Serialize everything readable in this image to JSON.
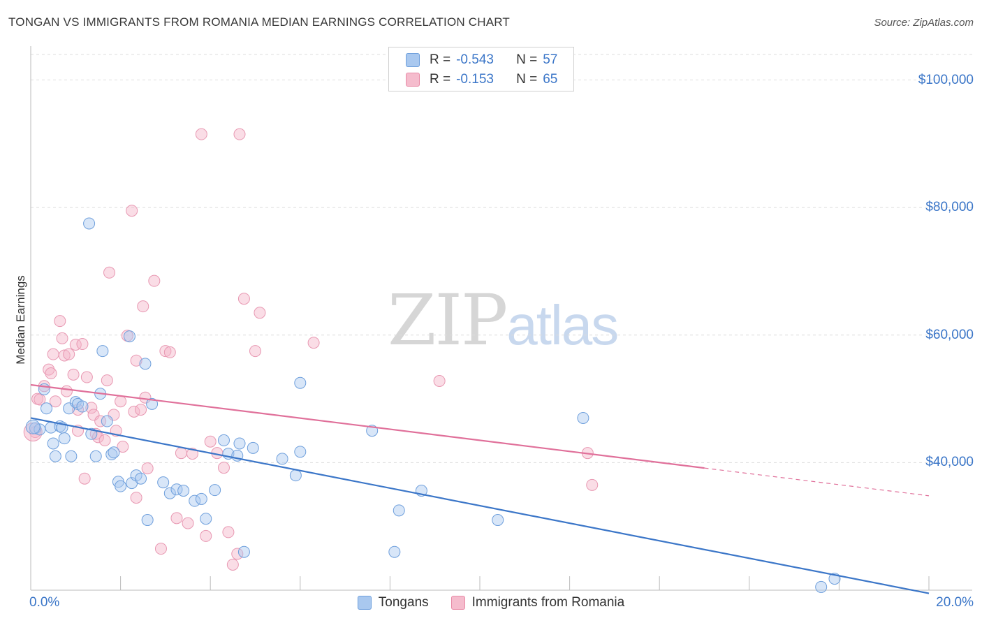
{
  "title": "TONGAN VS IMMIGRANTS FROM ROMANIA MEDIAN EARNINGS CORRELATION CHART",
  "source": "Source: ZipAtlas.com",
  "watermark": {
    "zip": "ZIP",
    "atlas": "atlas"
  },
  "legend_top": {
    "rows": [
      {
        "r_label": "R =",
        "r_value": "-0.543",
        "n_label": "N =",
        "n_value": "57",
        "color": "#a9c8ef",
        "border": "#6e9fdc"
      },
      {
        "r_label": "R =",
        "r_value": "-0.153",
        "n_label": "N =",
        "n_value": "65",
        "color": "#f5bccd",
        "border": "#e88aa6"
      }
    ]
  },
  "legend_bottom": [
    "Tongans",
    "Immigrants from Romania"
  ],
  "chart_data": {
    "type": "scatter",
    "title": "TONGAN VS IMMIGRANTS FROM ROMANIA MEDIAN EARNINGS CORRELATION CHART",
    "xlabel": "",
    "ylabel": "Median Earnings",
    "xlim": [
      0,
      20
    ],
    "ylim": [
      20000,
      104000
    ],
    "x_tick_labels": [
      "0.0%",
      "20.0%"
    ],
    "y_ticks": [
      40000,
      60000,
      80000,
      100000
    ],
    "y_tick_labels": [
      "$40,000",
      "$60,000",
      "$80,000",
      "$100,000"
    ],
    "colors": {
      "tongans": "#3b76c8",
      "romania": "#e0709a"
    },
    "series": [
      {
        "name": "Tongans",
        "points": [
          [
            0.1,
            45400
          ],
          [
            0.2,
            45200
          ],
          [
            0.3,
            51500
          ],
          [
            0.35,
            48500
          ],
          [
            0.45,
            45500
          ],
          [
            0.5,
            43000
          ],
          [
            0.55,
            41000
          ],
          [
            0.65,
            45700
          ],
          [
            0.7,
            45500
          ],
          [
            0.75,
            43800
          ],
          [
            0.85,
            48500
          ],
          [
            0.9,
            41000
          ],
          [
            1.0,
            49500
          ],
          [
            1.05,
            49200
          ],
          [
            1.15,
            48800
          ],
          [
            1.3,
            77500
          ],
          [
            1.35,
            44500
          ],
          [
            1.45,
            41000
          ],
          [
            1.55,
            50800
          ],
          [
            1.6,
            57500
          ],
          [
            1.7,
            46500
          ],
          [
            1.8,
            41300
          ],
          [
            1.85,
            41600
          ],
          [
            1.95,
            37000
          ],
          [
            2.0,
            36300
          ],
          [
            2.2,
            59800
          ],
          [
            2.25,
            36800
          ],
          [
            2.35,
            38000
          ],
          [
            2.45,
            37500
          ],
          [
            2.55,
            55500
          ],
          [
            2.6,
            31000
          ],
          [
            2.7,
            49200
          ],
          [
            2.95,
            36900
          ],
          [
            3.1,
            35200
          ],
          [
            3.25,
            35800
          ],
          [
            3.4,
            35600
          ],
          [
            3.65,
            34000
          ],
          [
            3.8,
            34300
          ],
          [
            3.9,
            31200
          ],
          [
            4.1,
            35700
          ],
          [
            4.3,
            43500
          ],
          [
            4.4,
            41400
          ],
          [
            4.6,
            41100
          ],
          [
            4.65,
            43000
          ],
          [
            4.75,
            26000
          ],
          [
            4.95,
            42300
          ],
          [
            5.6,
            40600
          ],
          [
            5.9,
            38000
          ],
          [
            6.0,
            41700
          ],
          [
            6.0,
            52500
          ],
          [
            7.6,
            45000
          ],
          [
            8.1,
            26000
          ],
          [
            8.2,
            32500
          ],
          [
            8.7,
            35600
          ],
          [
            10.4,
            31000
          ],
          [
            12.3,
            47000
          ],
          [
            17.6,
            20500
          ],
          [
            17.9,
            21800
          ]
        ]
      },
      {
        "name": "Immigrants from Romania",
        "points": [
          [
            0.1,
            44800
          ],
          [
            0.15,
            50000
          ],
          [
            0.2,
            49900
          ],
          [
            0.3,
            52000
          ],
          [
            0.4,
            54600
          ],
          [
            0.45,
            54000
          ],
          [
            0.5,
            57000
          ],
          [
            0.55,
            49600
          ],
          [
            0.65,
            62200
          ],
          [
            0.7,
            59500
          ],
          [
            0.75,
            56800
          ],
          [
            0.8,
            51200
          ],
          [
            0.85,
            57000
          ],
          [
            0.95,
            53800
          ],
          [
            1.0,
            58500
          ],
          [
            1.05,
            45000
          ],
          [
            1.15,
            58600
          ],
          [
            1.2,
            37500
          ],
          [
            1.25,
            53400
          ],
          [
            1.35,
            48600
          ],
          [
            1.4,
            47500
          ],
          [
            1.45,
            44500
          ],
          [
            1.5,
            44000
          ],
          [
            1.55,
            46500
          ],
          [
            1.65,
            43500
          ],
          [
            1.7,
            52900
          ],
          [
            1.75,
            69800
          ],
          [
            1.85,
            47500
          ],
          [
            1.9,
            45000
          ],
          [
            2.0,
            49600
          ],
          [
            2.05,
            42500
          ],
          [
            2.15,
            59900
          ],
          [
            2.25,
            79500
          ],
          [
            2.3,
            48000
          ],
          [
            2.35,
            34500
          ],
          [
            2.45,
            48300
          ],
          [
            2.5,
            64500
          ],
          [
            2.55,
            50200
          ],
          [
            2.6,
            39100
          ],
          [
            2.75,
            68500
          ],
          [
            2.9,
            26500
          ],
          [
            3.0,
            57500
          ],
          [
            3.1,
            57300
          ],
          [
            3.25,
            31300
          ],
          [
            3.35,
            41500
          ],
          [
            3.5,
            30500
          ],
          [
            3.6,
            41400
          ],
          [
            3.8,
            91500
          ],
          [
            3.9,
            28500
          ],
          [
            4.0,
            43300
          ],
          [
            4.15,
            41500
          ],
          [
            4.3,
            39200
          ],
          [
            4.4,
            29100
          ],
          [
            4.5,
            24000
          ],
          [
            4.6,
            25700
          ],
          [
            4.65,
            91500
          ],
          [
            4.75,
            65700
          ],
          [
            5.1,
            63500
          ],
          [
            5.0,
            57500
          ],
          [
            6.3,
            58800
          ],
          [
            9.1,
            52800
          ],
          [
            12.4,
            41500
          ],
          [
            12.5,
            36500
          ],
          [
            2.35,
            56000
          ],
          [
            1.05,
            48300
          ]
        ]
      }
    ],
    "trend_lines": [
      {
        "series": "Tongans",
        "x0": 0,
        "y0": 47000,
        "x1": 20,
        "y1": 19500,
        "solid_to": 20
      },
      {
        "series": "Immigrants from Romania",
        "x0": 0,
        "y0": 52200,
        "x1": 20,
        "y1": 34800,
        "solid_to": 15
      }
    ]
  }
}
